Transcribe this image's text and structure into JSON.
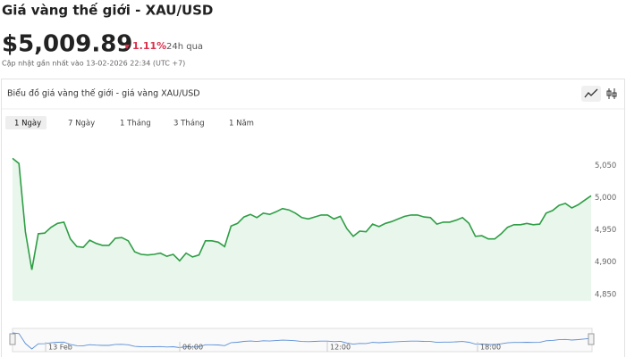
{
  "header": {
    "title": "Giá vàng thế giới - XAU/USD",
    "price": "$5,009.89",
    "change": "1.11%",
    "period": "24h qua",
    "updated": "Cập nhật gần nhất vào 13-02-2026 22:34 (UTC +7)"
  },
  "panel": {
    "title": "Biểu đồ giá vàng thế giới - giá vàng XAU/USD",
    "tabs": [
      "1 Ngày",
      "7 Ngày",
      "1 Tháng",
      "3 Tháng",
      "1 Năm"
    ]
  },
  "navigator": {
    "labels": [
      "13 Feb",
      "06:00",
      "12:00",
      "18:00"
    ]
  },
  "chart_data": {
    "type": "line",
    "color": "#2e9e45",
    "values": [
      5061,
      5053,
      4947,
      4888,
      4944,
      4945,
      4954,
      4960,
      4962,
      4936,
      4924,
      4923,
      4934,
      4929,
      4926,
      4926,
      4937,
      4938,
      4933,
      4916,
      4912,
      4911,
      4912,
      4914,
      4909,
      4912,
      4902,
      4914,
      4908,
      4911,
      4933,
      4933,
      4931,
      4924,
      4956,
      4960,
      4970,
      4974,
      4969,
      4976,
      4974,
      4978,
      4983,
      4981,
      4976,
      4969,
      4967,
      4970,
      4973,
      4973,
      4967,
      4971,
      4952,
      4940,
      4948,
      4947,
      4959,
      4955,
      4960,
      4963,
      4967,
      4971,
      4973,
      4973,
      4970,
      4969,
      4959,
      4962,
      4962,
      4965,
      4969,
      4960,
      4940,
      4941,
      4936,
      4936,
      4944,
      4954,
      4958,
      4958,
      4960,
      4958,
      4959,
      4976,
      4980,
      4988,
      4991,
      4984,
      4989,
      4996,
      5003
    ],
    "ylim": [
      4840,
      5110
    ],
    "yticks": [
      {
        "value": 4850,
        "label": "4,850"
      },
      {
        "value": 4900,
        "label": "4,900"
      },
      {
        "value": 4950,
        "label": "4,950"
      },
      {
        "value": 5000,
        "label": "5,000"
      },
      {
        "value": 5050,
        "label": "5,050"
      }
    ]
  }
}
